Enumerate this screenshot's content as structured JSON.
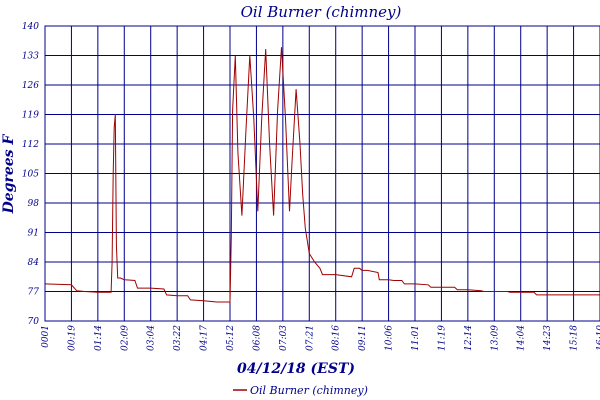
{
  "chart_data": {
    "type": "line",
    "title": "Oil Burner (chimney)",
    "xlabel": "04/12/18 (EST)",
    "ylabel": "Degrees F",
    "ylim": [
      70,
      140
    ],
    "yticks": [
      70,
      77,
      84,
      91,
      98,
      105,
      112,
      119,
      126,
      133,
      140
    ],
    "x_ticks": [
      "0001",
      "00:19",
      "01:14",
      "02:09",
      "03:04",
      "03:22",
      "04:17",
      "05:12",
      "06:08",
      "07:03",
      "07:21",
      "08:16",
      "09:11",
      "10:06",
      "11:01",
      "11:19",
      "12:14",
      "13:09",
      "14:04",
      "14:23",
      "15:18",
      "16:10"
    ],
    "grid": true,
    "legend_position": "bottom-center",
    "colors": {
      "series": "#a00000",
      "grid": "#00008b",
      "text": "#00008b"
    },
    "series": [
      {
        "name": "Oil Burner (chimney)",
        "x_index": [
          0,
          1.0,
          1.2,
          1.5,
          2.0,
          2.3,
          2.5,
          2.54,
          2.58,
          2.62,
          2.66,
          2.7,
          2.75,
          2.85,
          3.0,
          3.4,
          3.5,
          4.0,
          4.5,
          4.6,
          5.0,
          5.4,
          5.5,
          6.0,
          6.5,
          7.0,
          7.05,
          7.1,
          7.2,
          7.3,
          7.45,
          7.6,
          7.75,
          7.9,
          8.05,
          8.2,
          8.35,
          8.5,
          8.65,
          8.8,
          8.95,
          9.1,
          9.25,
          9.35,
          9.5,
          9.65,
          9.75,
          9.85,
          10.0,
          10.2,
          10.4,
          10.5,
          10.6,
          11.0,
          11.6,
          11.7,
          11.9,
          12.0,
          12.2,
          12.6,
          12.65,
          12.8,
          13.0,
          13.2,
          13.5,
          13.6,
          14.0,
          14.5,
          14.6,
          15.0,
          15.5,
          15.6,
          16.0,
          16.5,
          16.6,
          17.0,
          17.5,
          17.6,
          18.0,
          18.5,
          18.6,
          19.0,
          19.5,
          19.6,
          20.0,
          20.5,
          20.6,
          21.0
        ],
        "values": [
          78.8,
          78.6,
          77.2,
          77.0,
          76.8,
          76.8,
          76.8,
          84.0,
          105.0,
          116.0,
          119.0,
          88.0,
          80.2,
          80.2,
          79.8,
          79.6,
          77.8,
          77.8,
          77.6,
          76.2,
          76.0,
          76.0,
          75.0,
          74.8,
          74.5,
          74.5,
          90.0,
          120.0,
          133.0,
          110.0,
          95.0,
          115.0,
          133.0,
          118.0,
          96.0,
          118.0,
          134.5,
          112.0,
          95.0,
          120.0,
          135.0,
          118.0,
          96.0,
          108.0,
          125.0,
          112.0,
          100.0,
          92.0,
          86.0,
          84.0,
          82.5,
          81.0,
          81.0,
          81.0,
          80.5,
          82.5,
          82.5,
          82.0,
          82.0,
          81.5,
          79.8,
          79.8,
          79.8,
          79.6,
          79.6,
          78.8,
          78.8,
          78.6,
          78.0,
          78.0,
          78.0,
          77.4,
          77.4,
          77.2,
          77.0,
          77.0,
          77.0,
          76.8,
          76.8,
          76.8,
          76.2,
          76.2,
          76.2,
          76.2,
          76.2,
          76.2,
          76.2,
          76.2
        ]
      }
    ]
  }
}
